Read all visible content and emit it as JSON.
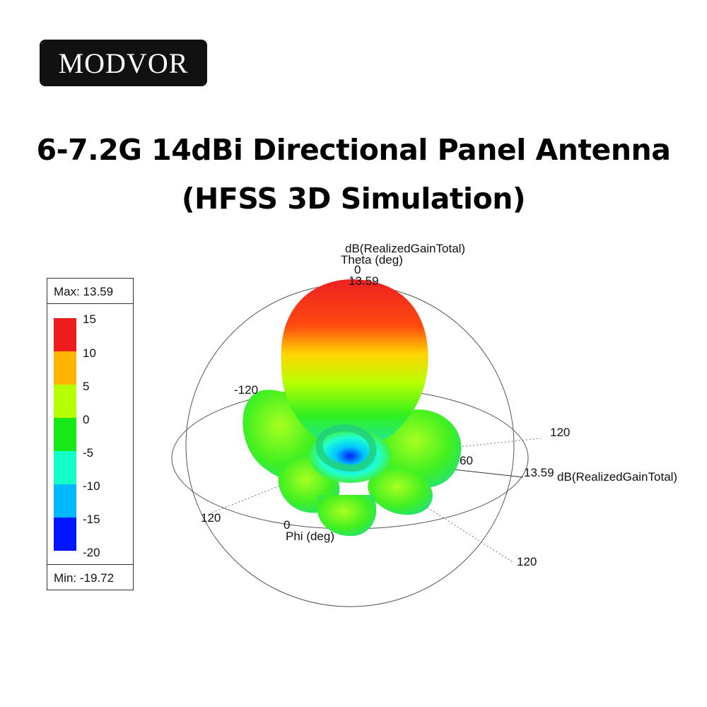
{
  "logo": {
    "text": "MODVOR"
  },
  "title": {
    "line1": "6-7.2G 14dBi Directional Panel Antenna",
    "line2": "(HFSS 3D Simulation)"
  },
  "legend": {
    "max_label": "Max: 13.59",
    "min_label": "Min: -19.72",
    "ticks": [
      "15",
      "10",
      "5",
      "0",
      "-5",
      "-10",
      "-15",
      "-20"
    ],
    "colors": [
      "#ee1c1c",
      "#ffb400",
      "#b6ff00",
      "#18e818",
      "#14ffc8",
      "#00b8ff",
      "#0014ff"
    ]
  },
  "plot": {
    "top_quantity": "dB(RealizedGainTotal)",
    "theta_label": "Theta (deg)",
    "theta_zero": "0",
    "top_max": "13.59",
    "tick_left": "-120",
    "tick_right_a": "120",
    "tick_mid": "60",
    "right_max": "13.59",
    "right_quantity": "dB(RealizedGainTotal)",
    "tick_bottom_left": "120",
    "phi_zero": "0",
    "phi_label": "Phi (deg)",
    "tick_bottom_right": "120"
  }
}
